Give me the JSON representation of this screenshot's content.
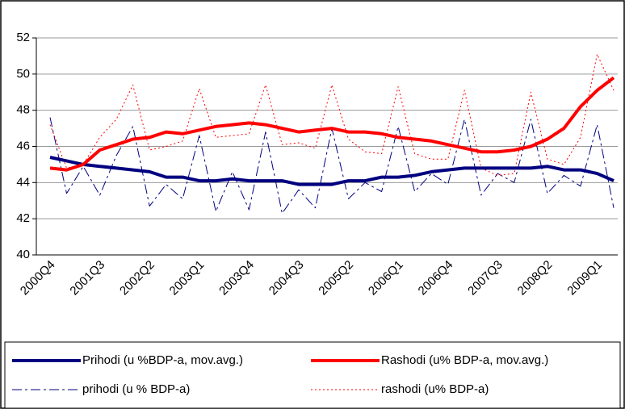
{
  "chart_data": {
    "type": "line",
    "categories": [
      "2000Q4",
      null,
      null,
      "2001Q3",
      null,
      null,
      "2002Q2",
      null,
      null,
      "2003Q1",
      null,
      null,
      "2003Q4",
      null,
      null,
      "2004Q3",
      null,
      null,
      "2005Q2",
      null,
      null,
      "2006Q1",
      null,
      null,
      "2006Q4",
      null,
      null,
      "2007Q3",
      null,
      null,
      "2008Q2",
      null,
      null,
      "2009Q1",
      null
    ],
    "ylim": [
      40,
      52
    ],
    "yticks": [
      40,
      42,
      44,
      46,
      48,
      50,
      52
    ],
    "grid": true,
    "legend": "bottom",
    "series": [
      {
        "name": "Prihodi (u %BDP-a, mov.avg.)",
        "color": "#000080",
        "width": 4,
        "dash": "solid",
        "values": [
          45.4,
          45.2,
          45.0,
          44.9,
          44.8,
          44.7,
          44.6,
          44.3,
          44.3,
          44.1,
          44.1,
          44.2,
          44.1,
          44.1,
          44.1,
          43.9,
          43.9,
          43.9,
          44.1,
          44.1,
          44.3,
          44.3,
          44.4,
          44.6,
          44.7,
          44.8,
          44.8,
          44.8,
          44.8,
          44.8,
          44.9,
          44.7,
          44.7,
          44.5,
          44.1
        ]
      },
      {
        "name": "Rashodi (u% BDP-a, mov.avg.)",
        "color": "#ff0000",
        "width": 4,
        "dash": "solid",
        "values": [
          44.8,
          44.7,
          45.0,
          45.8,
          46.1,
          46.4,
          46.5,
          46.8,
          46.7,
          46.9,
          47.1,
          47.2,
          47.3,
          47.2,
          47.0,
          46.8,
          46.9,
          47.0,
          46.8,
          46.8,
          46.7,
          46.5,
          46.4,
          46.3,
          46.1,
          45.9,
          45.7,
          45.7,
          45.8,
          46.0,
          46.4,
          47.0,
          48.2,
          49.1,
          49.8
        ]
      },
      {
        "name": "prihodi (u % BDP-a)",
        "color": "#000080",
        "width": 1,
        "dash": "dashdot",
        "values": [
          47.6,
          43.4,
          44.9,
          43.3,
          45.5,
          47.1,
          42.7,
          43.9,
          43.1,
          46.6,
          42.4,
          44.6,
          42.5,
          46.8,
          42.3,
          43.6,
          42.6,
          47.0,
          43.1,
          44.0,
          43.5,
          47.1,
          43.5,
          44.5,
          43.9,
          47.5,
          43.3,
          44.5,
          44.0,
          47.5,
          43.4,
          44.4,
          43.8,
          47.2,
          42.6
        ]
      },
      {
        "name": "rashodi (u% BDP-a)",
        "color": "#ff0000",
        "width": 1,
        "dash": "dotted",
        "values": [
          47.2,
          44.8,
          45.0,
          46.5,
          47.5,
          49.4,
          45.8,
          46.0,
          46.3,
          49.2,
          46.5,
          46.6,
          46.7,
          49.4,
          46.1,
          46.2,
          45.9,
          49.4,
          46.4,
          45.7,
          45.6,
          49.3,
          45.6,
          45.3,
          45.3,
          49.1,
          44.8,
          44.4,
          44.5,
          49.0,
          45.3,
          45.0,
          46.5,
          51.1,
          49.1
        ]
      }
    ]
  }
}
